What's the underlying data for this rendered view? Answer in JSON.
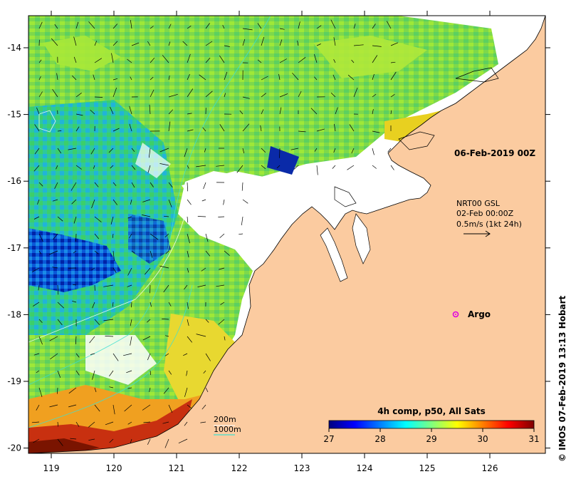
{
  "map": {
    "date_label": "06-Feb-2019 00Z",
    "lon_ticks": [
      "119",
      "120",
      "121",
      "122",
      "123",
      "124",
      "125",
      "126"
    ],
    "lat_ticks": [
      "-14",
      "-15",
      "-16",
      "-17",
      "-18",
      "-19",
      "-20"
    ],
    "ocean_color": "#ffffff",
    "land_color": "#fbcba0"
  },
  "current_legend": {
    "line1": "NRT00 GSL",
    "line2": "02-Feb 00:00Z",
    "line3": "0.5m/s (1kt 24h)"
  },
  "argo": {
    "label": "Argo",
    "color": "#e000e0"
  },
  "depth_legend": {
    "line1": "200m",
    "line2": "1000m",
    "line2_color": "#40e0d0"
  },
  "colorbar": {
    "title": "4h comp, p50, All Sats",
    "ticks": [
      "27",
      "28",
      "29",
      "30",
      "31"
    ],
    "colors": [
      "#00007f",
      "#0000ff",
      "#007fff",
      "#00ffff",
      "#7fff7f",
      "#ffff00",
      "#ff7f00",
      "#ff0000",
      "#7f0000"
    ]
  },
  "credit": "IMOS 07-Feb-2019 13:13 Hobart",
  "credit_symbol": "©"
}
